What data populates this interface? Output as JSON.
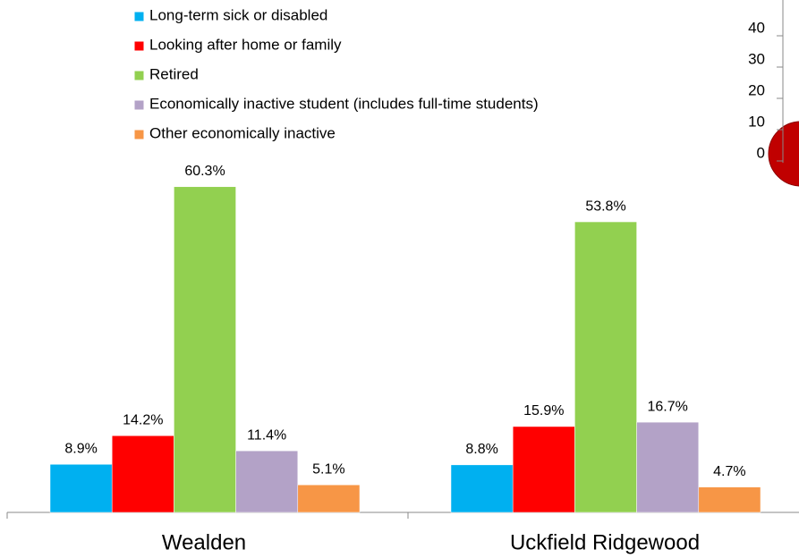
{
  "chart_data": [
    {
      "type": "bar",
      "categories": [
        "Wealden",
        "Uckfield Ridgewood"
      ],
      "series": [
        {
          "name": "Long-term sick or disabled",
          "color": "#00b0f0",
          "values": [
            8.9,
            8.8
          ],
          "value_labels": [
            "8.9%",
            "8.8%"
          ]
        },
        {
          "name": "Looking after home or family",
          "color": "#ff0000",
          "values": [
            14.2,
            15.9
          ],
          "value_labels": [
            "14.2%",
            "15.9%"
          ]
        },
        {
          "name": "Retired",
          "color": "#92d050",
          "values": [
            60.3,
            53.8
          ],
          "value_labels": [
            "60.3%",
            "53.8%"
          ]
        },
        {
          "name": "Economically inactive student (includes full-time students)",
          "color": "#b3a2c7",
          "values": [
            11.4,
            16.7
          ],
          "value_labels": [
            "11.4%",
            "16.7%"
          ]
        },
        {
          "name": "Other economically inactive",
          "color": "#f79646",
          "values": [
            5.1,
            4.7
          ],
          "value_labels": [
            "5.1%",
            "4.7%"
          ]
        }
      ],
      "ylim": [
        0,
        65
      ]
    },
    {
      "type": "bubble",
      "ylim": [
        0,
        40
      ],
      "yticks": [
        0,
        10,
        20,
        30,
        40
      ]
    }
  ]
}
